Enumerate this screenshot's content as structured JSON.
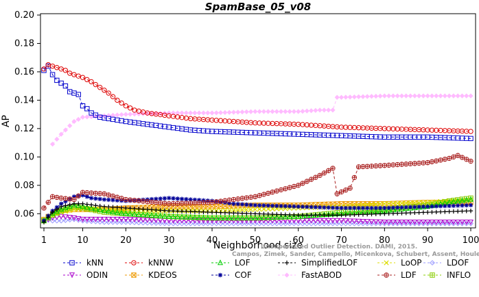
{
  "chart_data": {
    "type": "line",
    "title": "SpamBase_05_v08",
    "xlabel": "Neighborhood size",
    "ylabel": "AP",
    "xlim": [
      1,
      100
    ],
    "ylim": [
      0.05,
      0.2
    ],
    "x_ticks": [
      1,
      10,
      20,
      30,
      40,
      50,
      60,
      70,
      80,
      90,
      100
    ],
    "y_ticks": [
      0.06,
      0.08,
      0.1,
      0.12,
      0.14,
      0.16,
      0.18,
      0.2
    ],
    "grid": false,
    "legend_position": "bottom",
    "watermark": [
      "Unsupervised Outlier Detection. DAMI, 2015.",
      "Campos, Zimek, Sander, Campello, Micenkova, Schubert, Assent, Houle"
    ],
    "series": [
      {
        "name": "kNN",
        "color": "#0000cc",
        "marker": "square",
        "x": [
          1,
          2,
          3,
          4,
          5,
          6,
          7,
          8,
          9,
          10,
          11,
          12,
          14,
          16,
          18,
          20,
          25,
          30,
          35,
          40,
          50,
          60,
          70,
          80,
          90,
          100
        ],
        "y": [
          0.161,
          0.164,
          0.158,
          0.154,
          0.152,
          0.15,
          0.146,
          0.145,
          0.144,
          0.136,
          0.134,
          0.131,
          0.128,
          0.127,
          0.126,
          0.125,
          0.123,
          0.121,
          0.119,
          0.118,
          0.117,
          0.116,
          0.115,
          0.114,
          0.114,
          0.113
        ]
      },
      {
        "name": "kNNW",
        "color": "#dd0000",
        "marker": "circle",
        "x": [
          1,
          2,
          3,
          4,
          5,
          6,
          7,
          8,
          9,
          10,
          12,
          14,
          16,
          18,
          20,
          22,
          25,
          30,
          35,
          40,
          50,
          60,
          70,
          80,
          90,
          100
        ],
        "y": [
          0.162,
          0.165,
          0.164,
          0.163,
          0.162,
          0.161,
          0.159,
          0.158,
          0.157,
          0.156,
          0.153,
          0.149,
          0.145,
          0.14,
          0.136,
          0.133,
          0.131,
          0.129,
          0.127,
          0.126,
          0.124,
          0.123,
          0.121,
          0.12,
          0.119,
          0.118
        ]
      },
      {
        "name": "LOF",
        "color": "#00cc00",
        "marker": "triangle-up",
        "x": [
          1,
          3,
          5,
          8,
          10,
          15,
          20,
          30,
          40,
          50,
          60,
          70,
          80,
          90,
          95,
          100
        ],
        "y": [
          0.055,
          0.06,
          0.063,
          0.066,
          0.065,
          0.062,
          0.06,
          0.058,
          0.057,
          0.057,
          0.058,
          0.06,
          0.062,
          0.065,
          0.068,
          0.07
        ]
      },
      {
        "name": "SimplifiedLOF",
        "color": "#000000",
        "marker": "plus",
        "x": [
          1,
          3,
          5,
          8,
          10,
          15,
          20,
          30,
          40,
          50,
          60,
          70,
          80,
          90,
          100
        ],
        "y": [
          0.054,
          0.061,
          0.065,
          0.067,
          0.067,
          0.065,
          0.064,
          0.062,
          0.061,
          0.06,
          0.059,
          0.059,
          0.06,
          0.061,
          0.062
        ]
      },
      {
        "name": "LoOP",
        "color": "#dddd00",
        "marker": "x",
        "x": [
          1,
          3,
          5,
          8,
          10,
          15,
          20,
          30,
          40,
          50,
          60,
          70,
          80,
          90,
          100
        ],
        "y": [
          0.056,
          0.059,
          0.061,
          0.063,
          0.064,
          0.063,
          0.062,
          0.062,
          0.062,
          0.063,
          0.064,
          0.065,
          0.067,
          0.068,
          0.07
        ]
      },
      {
        "name": "LDOF",
        "color": "#9999ff",
        "marker": "diamond",
        "x": [
          1,
          3,
          5,
          8,
          10,
          15,
          20,
          30,
          40,
          50,
          60,
          70,
          80,
          90,
          100
        ],
        "y": [
          0.056,
          0.055,
          0.055,
          0.056,
          0.055,
          0.054,
          0.054,
          0.053,
          0.053,
          0.053,
          0.053,
          0.053,
          0.053,
          0.053,
          0.053
        ]
      },
      {
        "name": "ODIN",
        "color": "#aa00cc",
        "marker": "triangle-down",
        "x": [
          1,
          3,
          5,
          8,
          10,
          15,
          20,
          30,
          40,
          50,
          60,
          70,
          80,
          90,
          100
        ],
        "y": [
          0.055,
          0.057,
          0.058,
          0.057,
          0.056,
          0.056,
          0.056,
          0.055,
          0.055,
          0.055,
          0.055,
          0.055,
          0.054,
          0.054,
          0.054
        ]
      },
      {
        "name": "KDEOS",
        "color": "#ee9900",
        "marker": "square-x",
        "x": [
          1,
          3,
          5,
          8,
          10,
          15,
          20,
          30,
          40,
          50,
          60,
          70,
          80,
          90,
          100
        ],
        "y": [
          0.056,
          0.06,
          0.062,
          0.063,
          0.063,
          0.063,
          0.064,
          0.065,
          0.065,
          0.066,
          0.066,
          0.067,
          0.067,
          0.068,
          0.068
        ]
      },
      {
        "name": "COF",
        "color": "#000099",
        "marker": "star",
        "x": [
          1,
          3,
          5,
          8,
          10,
          12,
          15,
          20,
          25,
          30,
          35,
          40,
          45,
          50,
          60,
          70,
          80,
          90,
          100
        ],
        "y": [
          0.055,
          0.062,
          0.067,
          0.072,
          0.073,
          0.071,
          0.07,
          0.069,
          0.07,
          0.071,
          0.07,
          0.069,
          0.067,
          0.066,
          0.065,
          0.064,
          0.064,
          0.065,
          0.066
        ]
      },
      {
        "name": "FastABOD",
        "color": "#ffbbff",
        "marker": "diamond-filled",
        "x": [
          3,
          5,
          8,
          10,
          15,
          20,
          30,
          40,
          50,
          60,
          65,
          68,
          69,
          70,
          80,
          90,
          100
        ],
        "y": [
          0.109,
          0.116,
          0.125,
          0.128,
          0.129,
          0.13,
          0.131,
          0.131,
          0.132,
          0.132,
          0.133,
          0.133,
          0.142,
          0.142,
          0.143,
          0.143,
          0.143
        ]
      },
      {
        "name": "LDF",
        "color": "#aa2222",
        "marker": "circle-plus",
        "x": [
          1,
          3,
          5,
          8,
          10,
          15,
          20,
          30,
          40,
          50,
          55,
          60,
          65,
          68,
          69,
          72,
          74,
          80,
          90,
          95,
          97,
          100
        ],
        "y": [
          0.064,
          0.072,
          0.071,
          0.07,
          0.075,
          0.074,
          0.07,
          0.067,
          0.068,
          0.072,
          0.076,
          0.08,
          0.087,
          0.092,
          0.074,
          0.078,
          0.093,
          0.094,
          0.096,
          0.099,
          0.101,
          0.097
        ]
      },
      {
        "name": "INFLO",
        "color": "#88cc00",
        "marker": "square-cross",
        "x": [
          1,
          3,
          5,
          8,
          10,
          15,
          20,
          30,
          40,
          50,
          60,
          70,
          80,
          90,
          95,
          100
        ],
        "y": [
          0.055,
          0.059,
          0.062,
          0.065,
          0.064,
          0.061,
          0.06,
          0.058,
          0.057,
          0.057,
          0.058,
          0.061,
          0.063,
          0.066,
          0.069,
          0.071
        ]
      }
    ]
  }
}
